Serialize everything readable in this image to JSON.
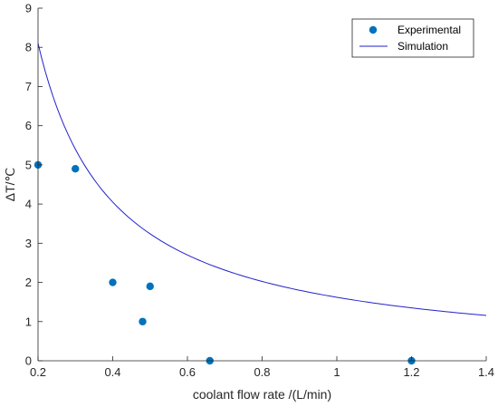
{
  "chart_data": {
    "type": "scatter",
    "title": "",
    "xlabel": "coolant flow rate /(L/min)",
    "ylabel": "ΔT/℃",
    "xlim": [
      0.2,
      1.4
    ],
    "ylim": [
      0,
      9
    ],
    "xticks": [
      0.2,
      0.4,
      0.6,
      0.8,
      1,
      1.2,
      1.4
    ],
    "xtick_labels": [
      "0.2",
      "0.4",
      "0.6",
      "0.8",
      "1",
      "1.2",
      "1.4"
    ],
    "yticks": [
      0,
      1,
      2,
      3,
      4,
      5,
      6,
      7,
      8,
      9
    ],
    "ytick_labels": [
      "0",
      "1",
      "2",
      "3",
      "4",
      "5",
      "6",
      "7",
      "8",
      "9"
    ],
    "grid": false,
    "legend_position": "top-right",
    "series": [
      {
        "name": "Experimental",
        "type": "scatter",
        "color": "#0072BD",
        "x": [
          0.2,
          0.3,
          0.4,
          0.48,
          0.5,
          0.66,
          1.2
        ],
        "y": [
          5.0,
          4.9,
          2.0,
          1.0,
          1.9,
          0.0,
          0.0
        ]
      },
      {
        "name": "Simulation",
        "type": "line",
        "color": "#2222cc",
        "x": [
          0.2,
          0.25,
          0.3,
          0.35,
          0.4,
          0.45,
          0.5,
          0.6,
          0.7,
          0.8,
          0.9,
          1.0,
          1.1,
          1.2,
          1.3,
          1.4
        ],
        "y": [
          8.1,
          6.48,
          5.4,
          4.63,
          4.05,
          3.6,
          3.24,
          2.7,
          2.31,
          2.03,
          1.8,
          1.62,
          1.47,
          1.35,
          1.25,
          1.16
        ]
      }
    ]
  }
}
